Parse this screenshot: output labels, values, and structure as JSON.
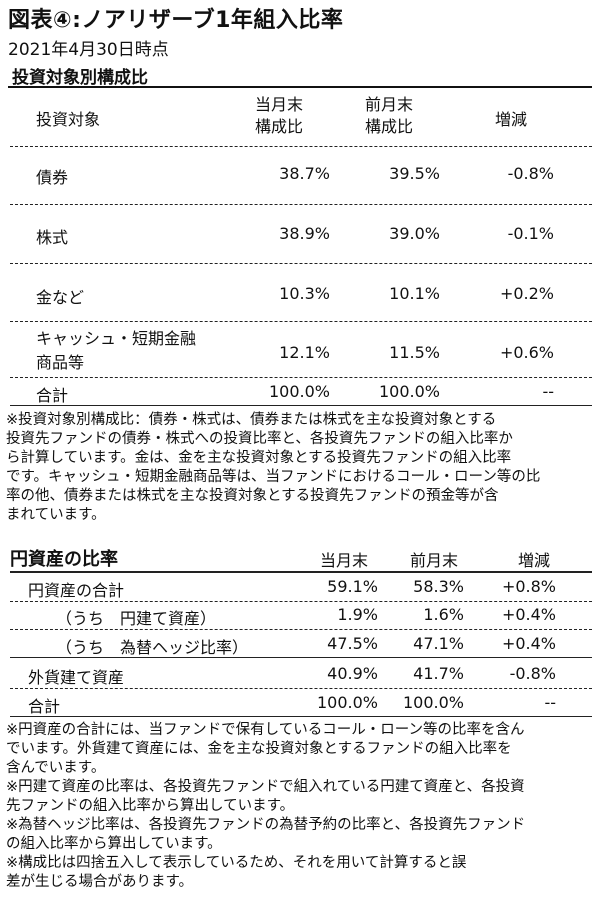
{
  "title": "図表④:ノアリザーブ1年組入比率",
  "date": "2021年4月30日時点",
  "table1": {
    "section_title": "投資対象別構成比",
    "headers": {
      "col1": "投資対象",
      "col2_line1": "当月末",
      "col2_line2": "構成比",
      "col3_line1": "前月末",
      "col3_line2": "構成比",
      "col4": "増減"
    },
    "rows": [
      {
        "label": "債券",
        "current": "38.7%",
        "previous": "39.5%",
        "change": "-0.8%"
      },
      {
        "label": "株式",
        "current": "38.9%",
        "previous": "39.0%",
        "change": "-0.1%"
      },
      {
        "label": "金など",
        "current": "10.3%",
        "previous": "10.1%",
        "change": "+0.2%"
      },
      {
        "label_line1": "キャッシュ・短期金融",
        "label_line2": "商品等",
        "current": "12.1%",
        "previous": "11.5%",
        "change": "+0.6%"
      },
      {
        "label": "合計",
        "current": "100.0%",
        "previous": "100.0%",
        "change": "--"
      }
    ],
    "note": [
      "※投資対象別構成比：債券・株式は、債券または株式を主な投資対象とする",
      "投資先ファンドの債券・株式への投資比率と、各投資先ファンドの組入比率か",
      "ら計算しています。金は、金を主な投資対象とする投資先ファンドの組入比率",
      "です。キャッシュ・短期金融商品等は、当ファンドにおけるコール・ローン等の比",
      "率の他、債券または株式を主な投資対象とする投資先ファンドの預金等が含",
      "まれています。"
    ]
  },
  "table2": {
    "section_title": "円資産の比率",
    "headers": {
      "current": "当月末",
      "previous": "前月末",
      "change": "増減"
    },
    "rows": [
      {
        "label": "円資産の合計",
        "current": "59.1%",
        "previous": "58.3%",
        "change": "+0.8%"
      },
      {
        "label": "（うち　円建て資産）",
        "current": "1.9%",
        "previous": "1.6%",
        "change": "+0.4%"
      },
      {
        "label": "（うち　為替ヘッジ比率）",
        "current": "47.5%",
        "previous": "47.1%",
        "change": "+0.4%"
      },
      {
        "label": "外貨建て資産",
        "current": "40.9%",
        "previous": "41.7%",
        "change": "-0.8%"
      },
      {
        "label": "合計",
        "current": "100.0%",
        "previous": "100.0%",
        "change": "--"
      }
    ],
    "notes": [
      "※円資産の合計には、当ファンドで保有しているコール・ローン等の比率を含ん",
      "でいます。外貨建て資産には、金を主な投資対象とするファンドの組入比率を",
      "含んでいます。",
      "※円建て資産の比率は、各投資先ファンドで組入れている円建て資産と、各投資",
      "先ファンドの組入比率から算出しています。",
      "※為替ヘッジ比率は、各投資先ファンドの為替予約の比率と、各投資先ファンド",
      "の組入比率から算出しています。",
      "※構成比は四捨五入して表示しているため、それを用いて計算すると誤",
      "差が生じる場合があります。"
    ]
  }
}
